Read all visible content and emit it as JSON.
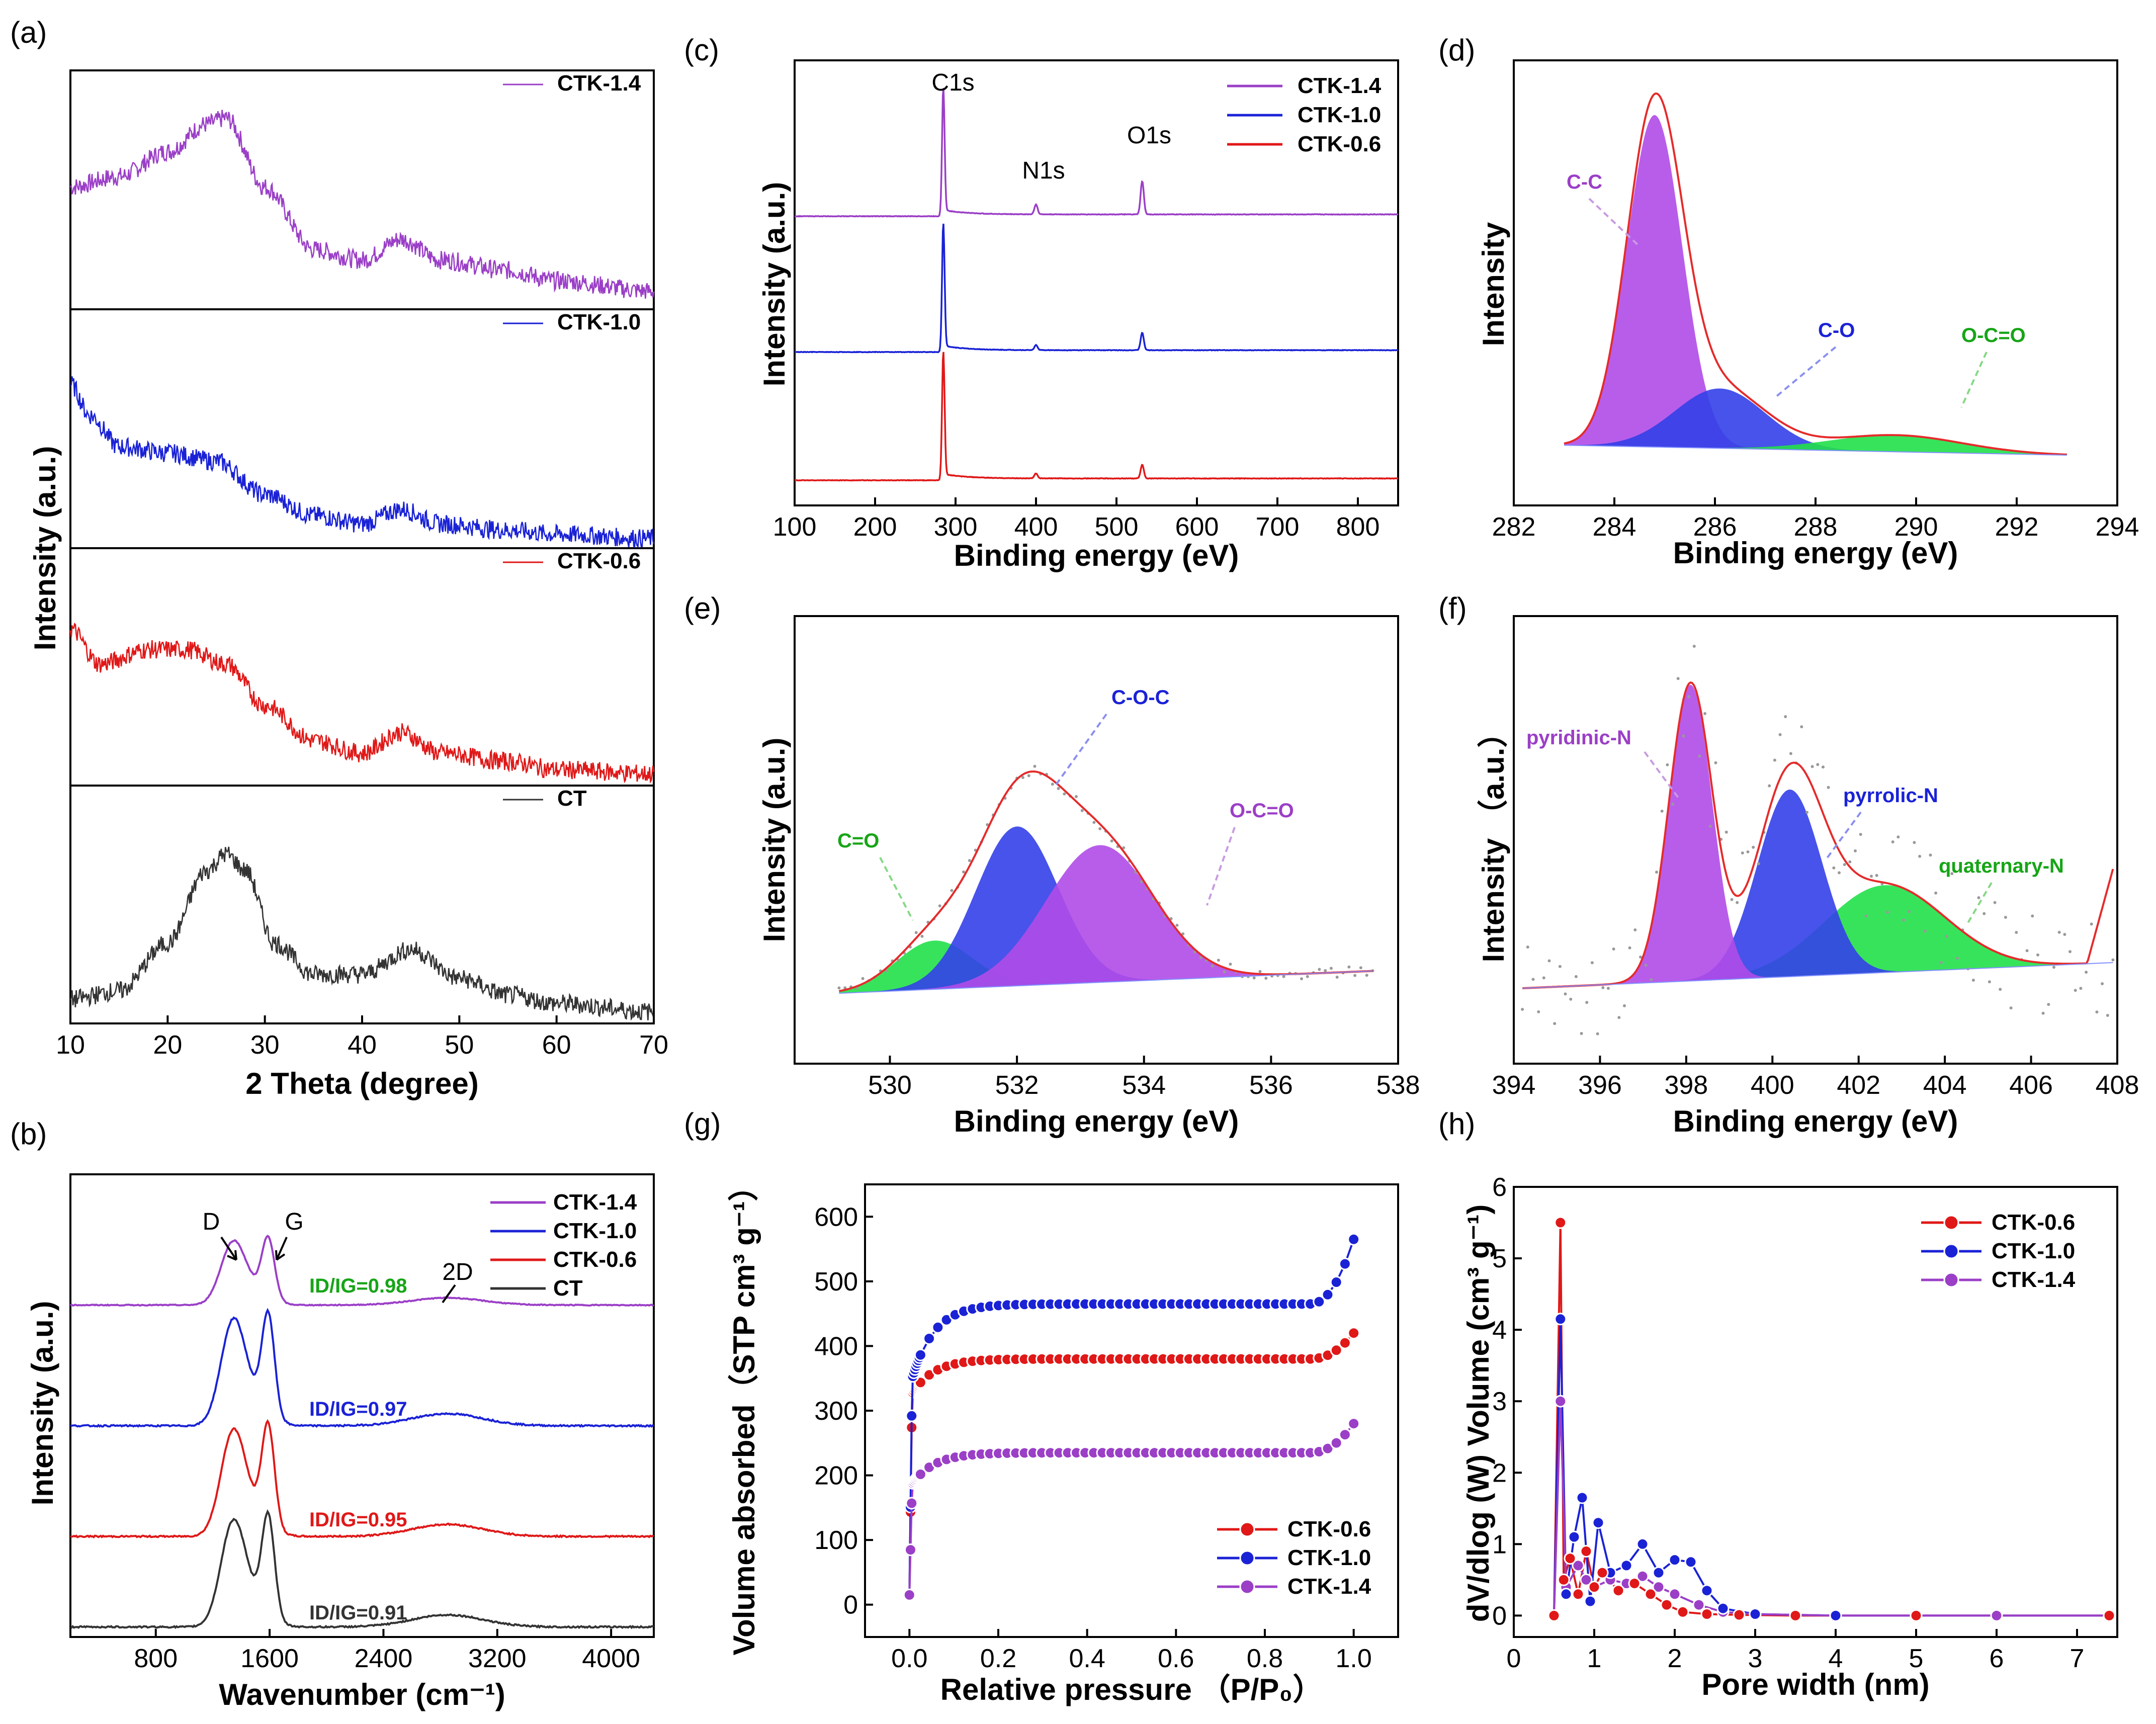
{
  "colors": {
    "purple": "#9b3fc7",
    "blue": "#1a22d6",
    "red": "#e01818",
    "gray": "#333333",
    "green": "#17c617",
    "fill_purple": "#b04be8",
    "fill_blue": "#3340e8",
    "fill_green": "#22e04a",
    "envelope": "#e52b2b"
  },
  "chart_data": [
    {
      "id": "a",
      "type": "line",
      "panel_label": "(a)",
      "xlabel": "2 Theta (degree)",
      "ylabel": "Intensity (a.u.)",
      "xlim": [
        10,
        70
      ],
      "xticks": [
        "10",
        "20",
        "30",
        "40",
        "50",
        "60",
        "70"
      ],
      "series": [
        {
          "name": "CTK-1.4",
          "color": "purple",
          "points": [
            [
              10,
              0.55
            ],
            [
              15,
              0.6
            ],
            [
              20,
              0.72
            ],
            [
              24,
              0.85
            ],
            [
              26,
              0.88
            ],
            [
              30,
              0.55
            ],
            [
              35,
              0.25
            ],
            [
              40,
              0.2
            ],
            [
              44,
              0.3
            ],
            [
              48,
              0.2
            ],
            [
              55,
              0.15
            ],
            [
              60,
              0.1
            ],
            [
              70,
              0.05
            ]
          ]
        },
        {
          "name": "CTK-1.0",
          "color": "blue",
          "points": [
            [
              10,
              0.75
            ],
            [
              12,
              0.6
            ],
            [
              15,
              0.45
            ],
            [
              20,
              0.42
            ],
            [
              25,
              0.38
            ],
            [
              30,
              0.22
            ],
            [
              35,
              0.12
            ],
            [
              40,
              0.08
            ],
            [
              44,
              0.15
            ],
            [
              48,
              0.08
            ],
            [
              55,
              0.05
            ],
            [
              60,
              0.03
            ],
            [
              70,
              0.01
            ]
          ]
        },
        {
          "name": "CTK-0.6",
          "color": "red",
          "points": [
            [
              10,
              0.72
            ],
            [
              13,
              0.55
            ],
            [
              18,
              0.62
            ],
            [
              22,
              0.62
            ],
            [
              26,
              0.55
            ],
            [
              30,
              0.35
            ],
            [
              35,
              0.18
            ],
            [
              40,
              0.12
            ],
            [
              44,
              0.22
            ],
            [
              48,
              0.12
            ],
            [
              55,
              0.08
            ],
            [
              60,
              0.04
            ],
            [
              70,
              0.02
            ]
          ]
        },
        {
          "name": "CT",
          "color": "gray",
          "points": [
            [
              10,
              0.08
            ],
            [
              15,
              0.12
            ],
            [
              20,
              0.35
            ],
            [
              24,
              0.7
            ],
            [
              26,
              0.78
            ],
            [
              28,
              0.7
            ],
            [
              31,
              0.35
            ],
            [
              35,
              0.2
            ],
            [
              40,
              0.2
            ],
            [
              45,
              0.32
            ],
            [
              50,
              0.18
            ],
            [
              55,
              0.1
            ],
            [
              60,
              0.06
            ],
            [
              70,
              0.02
            ]
          ]
        }
      ]
    },
    {
      "id": "b",
      "type": "line",
      "panel_label": "(b)",
      "xlabel": "Wavenumber (cm⁻¹)",
      "ylabel": "Intensity (a.u.)",
      "xlim": [
        200,
        4300
      ],
      "xticks": [
        "800",
        "1600",
        "2400",
        "3200",
        "4000"
      ],
      "peak_labels": [
        "D",
        "G",
        "2D"
      ],
      "series": [
        {
          "name": "CTK-1.4",
          "color": "purple",
          "ratio": "ID/IG=0.98",
          "ratio_value": 0.98
        },
        {
          "name": "CTK-1.0",
          "color": "blue",
          "ratio": "ID/IG=0.97",
          "ratio_value": 0.97
        },
        {
          "name": "CTK-0.6",
          "color": "red",
          "ratio": "ID/IG=0.95",
          "ratio_value": 0.95
        },
        {
          "name": "CT",
          "color": "gray",
          "ratio": "ID/IG=0.91",
          "ratio_value": 0.91
        }
      ]
    },
    {
      "id": "c",
      "type": "line",
      "panel_label": "(c)",
      "xlabel": "Binding energy (eV)",
      "ylabel": "Intensity (a.u.)",
      "xlim": [
        100,
        850
      ],
      "xticks": [
        "100",
        "200",
        "300",
        "400",
        "500",
        "600",
        "700",
        "800"
      ],
      "peak_labels": [
        "C1s",
        "N1s",
        "O1s"
      ],
      "series": [
        {
          "name": "CTK-1.4",
          "color": "purple"
        },
        {
          "name": "CTK-1.0",
          "color": "blue"
        },
        {
          "name": "CTK-0.6",
          "color": "red"
        }
      ]
    },
    {
      "id": "d",
      "type": "area",
      "panel_label": "(d)",
      "xlabel": "Binding energy (eV)",
      "ylabel": "Intensity",
      "xlim": [
        282,
        294
      ],
      "xticks": [
        "282",
        "284",
        "286",
        "288",
        "290",
        "292",
        "294"
      ],
      "components": [
        {
          "name": "C-C",
          "center": 284.8,
          "height": 1.0,
          "width": 0.55,
          "color": "purple"
        },
        {
          "name": "C-O",
          "center": 286.1,
          "height": 0.18,
          "width": 0.9,
          "color": "blue"
        },
        {
          "name": "O-C=O",
          "center": 289.6,
          "height": 0.05,
          "width": 1.3,
          "color": "green"
        }
      ]
    },
    {
      "id": "e",
      "type": "area",
      "panel_label": "(e)",
      "xlabel": "Binding energy (eV)",
      "ylabel": "Intensity (a.u.)",
      "xlim": [
        528.5,
        538
      ],
      "xticks": [
        "530",
        "532",
        "534",
        "536",
        "538"
      ],
      "components": [
        {
          "name": "C=O",
          "center": 530.7,
          "height": 0.22,
          "width": 0.6,
          "color": "green"
        },
        {
          "name": "C-O-C",
          "center": 532.0,
          "height": 0.72,
          "width": 0.65,
          "color": "blue"
        },
        {
          "name": "O-C=O",
          "center": 533.3,
          "height": 0.62,
          "width": 0.85,
          "color": "purple"
        }
      ]
    },
    {
      "id": "f",
      "type": "area",
      "panel_label": "(f)",
      "xlabel": "Binding energy (eV)",
      "ylabel": "Intensity （a.u.）",
      "xlim": [
        394,
        408
      ],
      "xticks": [
        "394",
        "396",
        "398",
        "400",
        "402",
        "404",
        "406",
        "408"
      ],
      "components": [
        {
          "name": "pyridinic-N",
          "center": 398.1,
          "height": 0.95,
          "width": 0.5,
          "color": "purple"
        },
        {
          "name": "pyrrolic-N",
          "center": 400.4,
          "height": 0.6,
          "width": 0.75,
          "color": "blue"
        },
        {
          "name": "quaternary-N",
          "center": 402.6,
          "height": 0.28,
          "width": 1.4,
          "color": "green"
        }
      ]
    },
    {
      "id": "g",
      "type": "scatter",
      "panel_label": "(g)",
      "xlabel": "Relative pressure （P/P₀）",
      "ylabel": "Volume absorbed（STP cm³ g⁻¹）",
      "xlim": [
        -0.1,
        1.1
      ],
      "ylim": [
        -50,
        650
      ],
      "xticks": [
        "0.0",
        "0.2",
        "0.4",
        "0.6",
        "0.8",
        "1.0"
      ],
      "yticks": [
        "0",
        "100",
        "200",
        "300",
        "400",
        "500",
        "600"
      ],
      "series": [
        {
          "name": "CTK-0.6",
          "color": "red",
          "plateau": 380,
          "low": 320,
          "end": 420
        },
        {
          "name": "CTK-1.0",
          "color": "blue",
          "plateau": 465,
          "low": 335,
          "end": 565
        },
        {
          "name": "CTK-1.4",
          "color": "purple",
          "plateau": 235,
          "low": 180,
          "end": 280
        }
      ]
    },
    {
      "id": "h",
      "type": "scatter",
      "panel_label": "(h)",
      "xlabel": "Pore width (nm)",
      "ylabel": "dV/dlog (W) Volume (cm³ g⁻¹)",
      "xlim": [
        0,
        7.5
      ],
      "ylim": [
        -0.3,
        6
      ],
      "xticks": [
        "0",
        "1",
        "2",
        "3",
        "4",
        "5",
        "6",
        "7"
      ],
      "yticks": [
        "0",
        "1",
        "2",
        "3",
        "4",
        "5",
        "6"
      ],
      "series": [
        {
          "name": "CTK-0.6",
          "color": "red",
          "points": [
            [
              0.5,
              0
            ],
            [
              0.58,
              5.5
            ],
            [
              0.62,
              0.5
            ],
            [
              0.7,
              0.8
            ],
            [
              0.8,
              0.3
            ],
            [
              0.9,
              0.9
            ],
            [
              1.0,
              0.4
            ],
            [
              1.1,
              0.6
            ],
            [
              1.3,
              0.35
            ],
            [
              1.5,
              0.45
            ],
            [
              1.7,
              0.3
            ],
            [
              1.9,
              0.15
            ],
            [
              2.1,
              0.05
            ],
            [
              2.4,
              0.02
            ],
            [
              2.8,
              0.01
            ],
            [
              3.5,
              0
            ],
            [
              5,
              0
            ],
            [
              7.4,
              0
            ]
          ]
        },
        {
          "name": "CTK-1.0",
          "color": "blue",
          "points": [
            [
              0.5,
              0
            ],
            [
              0.58,
              4.15
            ],
            [
              0.65,
              0.3
            ],
            [
              0.75,
              1.1
            ],
            [
              0.85,
              1.65
            ],
            [
              0.95,
              0.2
            ],
            [
              1.05,
              1.3
            ],
            [
              1.2,
              0.6
            ],
            [
              1.4,
              0.7
            ],
            [
              1.6,
              1.0
            ],
            [
              1.8,
              0.6
            ],
            [
              2.0,
              0.78
            ],
            [
              2.2,
              0.75
            ],
            [
              2.4,
              0.35
            ],
            [
              2.6,
              0.1
            ],
            [
              3,
              0.02
            ],
            [
              4,
              0
            ],
            [
              5,
              0
            ],
            [
              7.4,
              0
            ]
          ]
        },
        {
          "name": "CTK-1.4",
          "color": "purple",
          "points": [
            [
              0.5,
              0
            ],
            [
              0.58,
              3.0
            ],
            [
              0.65,
              0.4
            ],
            [
              0.8,
              0.7
            ],
            [
              0.9,
              0.5
            ],
            [
              1.0,
              0.4
            ],
            [
              1.2,
              0.5
            ],
            [
              1.4,
              0.45
            ],
            [
              1.6,
              0.55
            ],
            [
              1.8,
              0.4
            ],
            [
              2.0,
              0.3
            ],
            [
              2.3,
              0.15
            ],
            [
              2.6,
              0.05
            ],
            [
              3,
              0.02
            ],
            [
              4,
              0
            ],
            [
              6,
              0
            ],
            [
              7.4,
              0
            ]
          ]
        }
      ]
    }
  ]
}
